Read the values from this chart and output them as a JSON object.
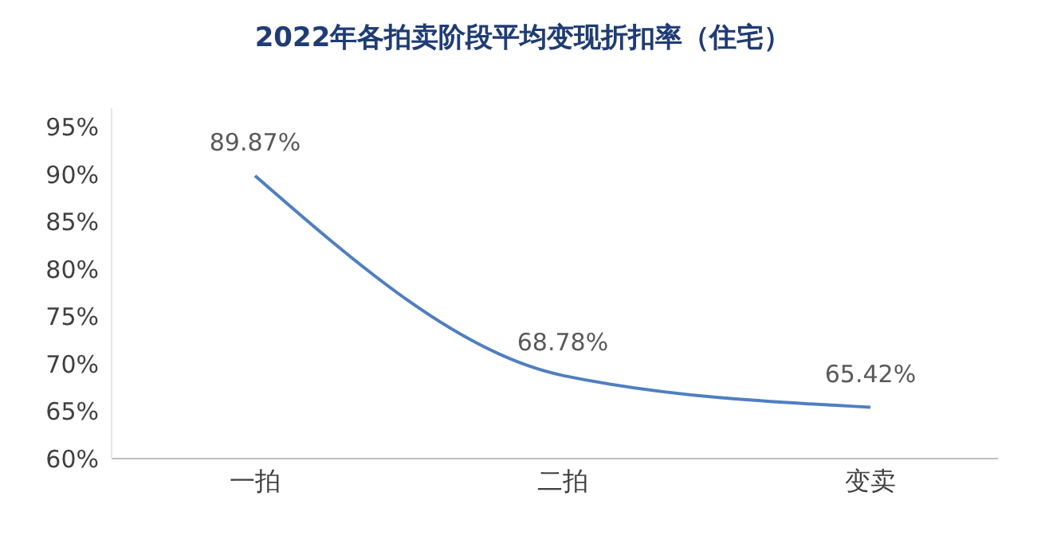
{
  "chart_data": {
    "type": "line",
    "title": "2022年各拍卖阶段平均变现折扣率（住宅）",
    "categories": [
      "一拍",
      "二拍",
      "变卖"
    ],
    "series": [
      {
        "color": "#4f7fc0",
        "values": [
          89.87,
          68.78,
          65.42
        ],
        "value_labels": [
          "89.87%",
          "68.78%",
          "65.42%"
        ]
      }
    ],
    "ylim": [
      60,
      97
    ],
    "yticks": [
      {
        "value": 60,
        "label": "60%"
      },
      {
        "value": 65,
        "label": "65%"
      },
      {
        "value": 70,
        "label": "70%"
      },
      {
        "value": 75,
        "label": "75%"
      },
      {
        "value": 80,
        "label": "80%"
      },
      {
        "value": 85,
        "label": "85%"
      },
      {
        "value": 90,
        "label": "90%"
      },
      {
        "value": 95,
        "label": "95%"
      }
    ],
    "grid": false,
    "marker": "none",
    "line_style": "solid"
  }
}
